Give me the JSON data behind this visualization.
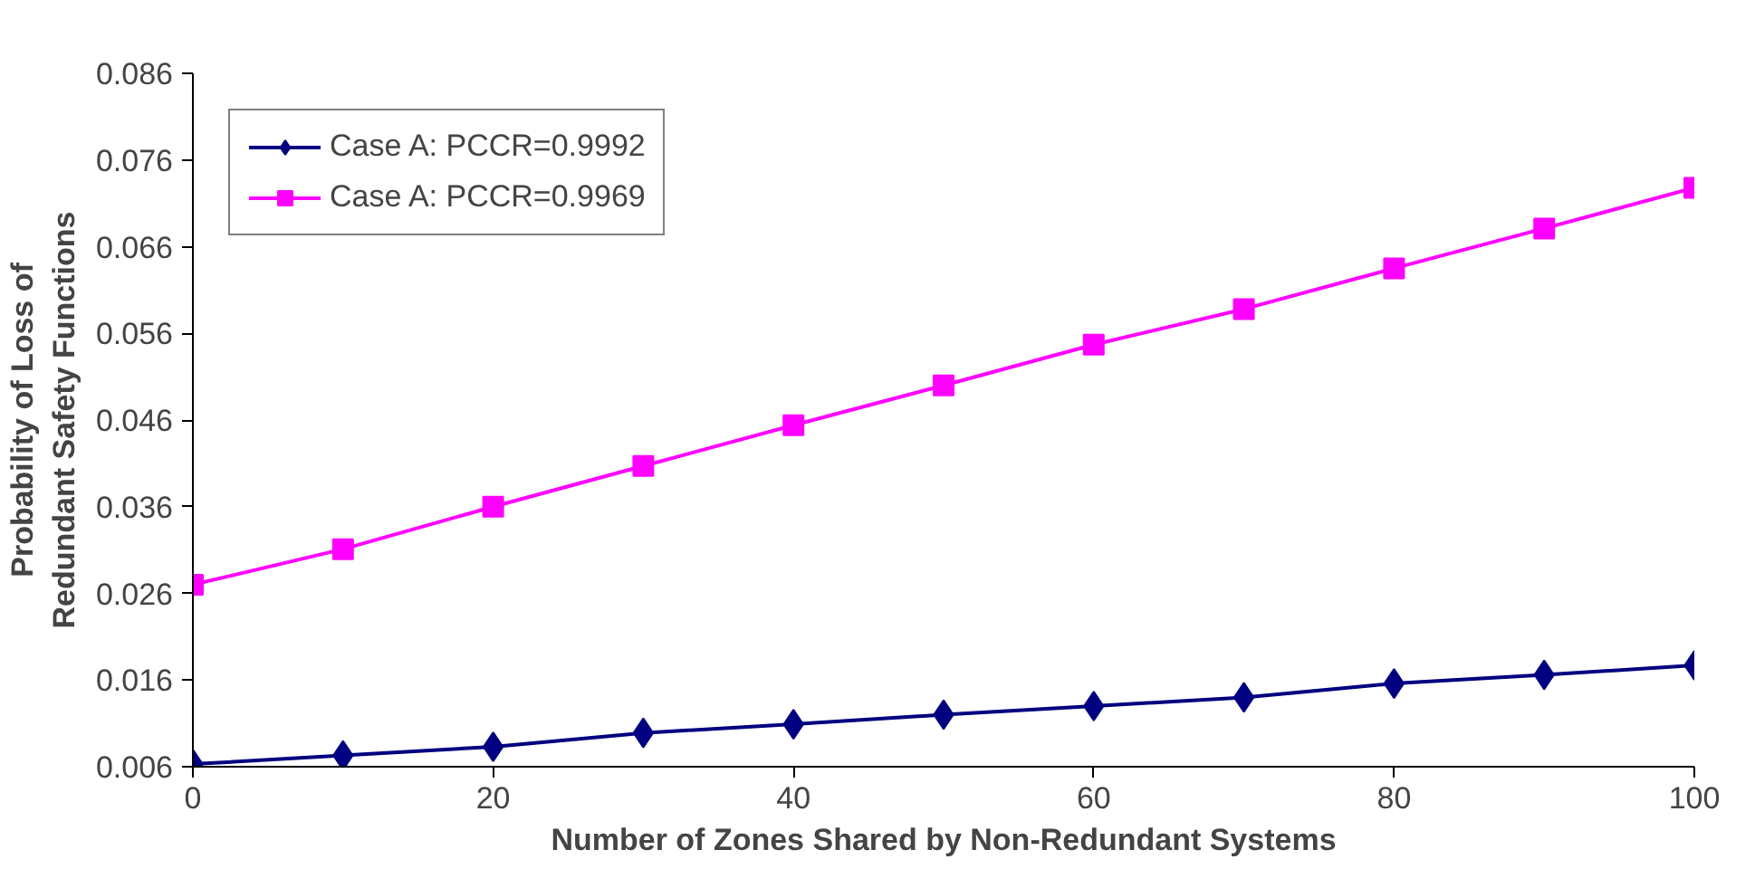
{
  "chart_data": {
    "type": "line",
    "xlabel": "Number of Zones Shared by Non-Redundant Systems",
    "ylabel": "Probability of Loss of\nRedundant Safety Functions",
    "x": [
      0,
      10,
      20,
      30,
      40,
      50,
      60,
      70,
      80,
      90,
      100
    ],
    "series": [
      {
        "name": "Case A: PCCR=0.9992",
        "color": "#000080",
        "marker": "diamond",
        "values": [
          0.0063,
          0.0073,
          0.0083,
          0.0099,
          0.0109,
          0.012,
          0.013,
          0.014,
          0.0156,
          0.0166,
          0.0177
        ]
      },
      {
        "name": "Case A: PCCR=0.9969",
        "color": "#ff00ff",
        "marker": "square",
        "values": [
          0.027,
          0.0311,
          0.036,
          0.0407,
          0.0454,
          0.05,
          0.0547,
          0.0588,
          0.0635,
          0.0681,
          0.0728
        ]
      }
    ],
    "xlim": [
      0,
      100
    ],
    "xticks": [
      0,
      20,
      40,
      60,
      80,
      100
    ],
    "ylim": [
      0.006,
      0.086
    ],
    "yticks": [
      0.006,
      0.016,
      0.026,
      0.036,
      0.046,
      0.056,
      0.066,
      0.076,
      0.086
    ],
    "grid": false,
    "legend": "top left",
    "line_style": "solid"
  }
}
